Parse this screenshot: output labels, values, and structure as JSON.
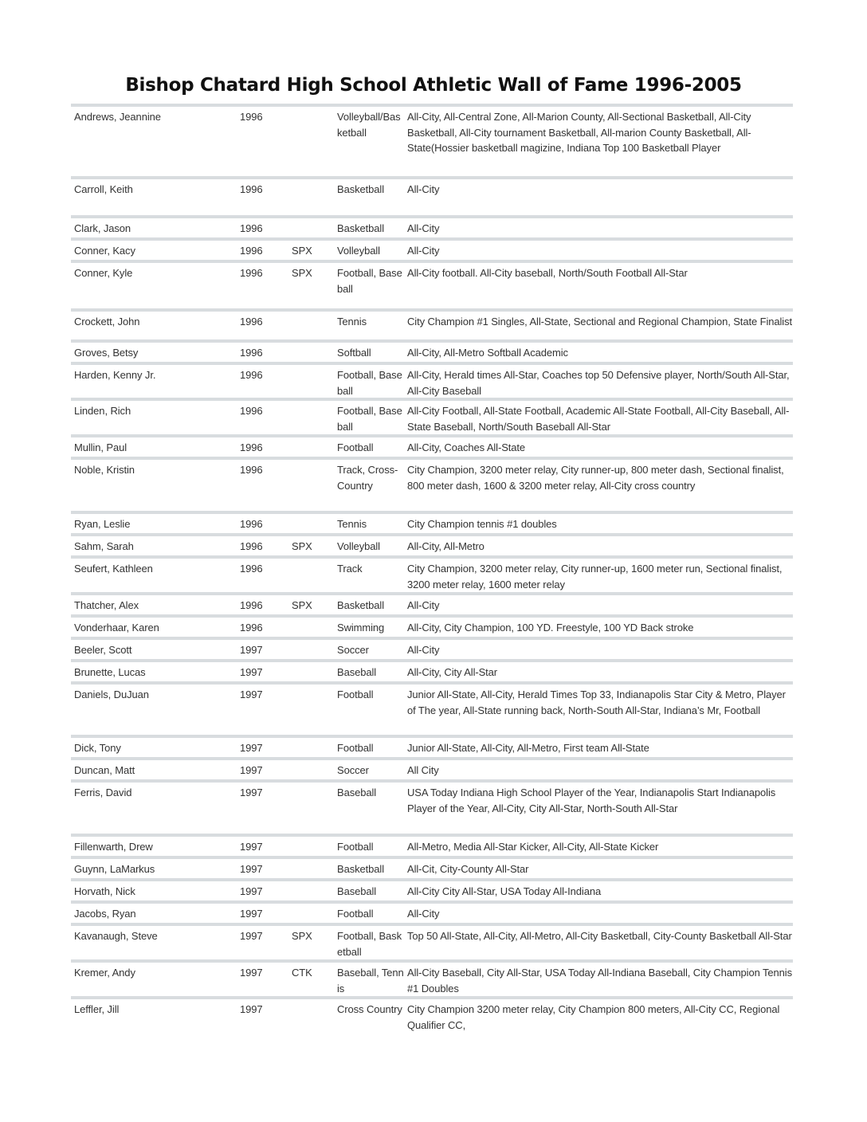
{
  "title": "Bishop Chatard High School Athletic Wall of Fame 1996-2005",
  "rows": [
    {
      "name": "Andrews, Jeannine",
      "year": "1996",
      "school": "",
      "sport": "Volleyball/Basketball",
      "honors": "All-City, All-Central Zone, All-Marion County, All-Sectional Basketball, All-City Basketball, All-City tournament Basketball, All-marion County Basketball, All-State(Hossier basketball magizine, Indiana Top 100 Basketball Player"
    },
    {
      "name": "Carroll, Keith",
      "year": "1996",
      "school": "",
      "sport": "Basketball",
      "honors": "All-City"
    },
    {
      "name": "Clark, Jason",
      "year": "1996",
      "school": "",
      "sport": "Basketball",
      "honors": "All-City"
    },
    {
      "name": "Conner, Kacy",
      "year": "1996",
      "school": "SPX",
      "sport": "Volleyball",
      "honors": "All-City"
    },
    {
      "name": "Conner, Kyle",
      "year": "1996",
      "school": "SPX",
      "sport": "Football, Baseball",
      "honors": "All-City football. All-City baseball, North/South Football All-Star"
    },
    {
      "name": "Crockett, John",
      "year": "1996",
      "school": "",
      "sport": "Tennis",
      "honors": "City Champion #1 Singles, All-State, Sectional and Regional Champion, State Finalist"
    },
    {
      "name": "Groves, Betsy",
      "year": "1996",
      "school": "",
      "sport": "Softball",
      "honors": "All-City, All-Metro Softball Academic"
    },
    {
      "name": "Harden, Kenny Jr.",
      "year": "1996",
      "school": "",
      "sport": "Football, Baseball",
      "honors": "All-City, Herald times All-Star, Coaches top 50 Defensive player, North/South All-Star, All-City Baseball"
    },
    {
      "name": "Linden, Rich",
      "year": "1996",
      "school": "",
      "sport": "Football, Baseball",
      "honors": "All-City Football, All-State Football, Academic All-State Football, All-City Baseball, All-State Baseball, North/South Baseball All-Star"
    },
    {
      "name": "Mullin, Paul",
      "year": "1996",
      "school": "",
      "sport": "Football",
      "honors": "All-City, Coaches All-State"
    },
    {
      "name": "Noble, Kristin",
      "year": "1996",
      "school": "",
      "sport": "Track, Cross-Country",
      "honors": "City Champion, 3200 meter relay, City runner-up, 800 meter dash, Sectional finalist, 800 meter dash, 1600 & 3200 meter relay, All-City cross country"
    },
    {
      "name": "Ryan, Leslie",
      "year": "1996",
      "school": "",
      "sport": "Tennis",
      "honors": "City Champion tennis #1 doubles"
    },
    {
      "name": "Sahm, Sarah",
      "year": "1996",
      "school": "SPX",
      "sport": "Volleyball",
      "honors": "All-City, All-Metro"
    },
    {
      "name": "Seufert, Kathleen",
      "year": "1996",
      "school": "",
      "sport": "Track",
      "honors": "City Champion, 3200 meter relay, City runner-up, 1600 meter run, Sectional finalist, 3200 meter relay, 1600 meter relay"
    },
    {
      "name": "Thatcher, Alex",
      "year": "1996",
      "school": "SPX",
      "sport": "Basketball",
      "honors": "All-City"
    },
    {
      "name": "Vonderhaar, Karen",
      "year": "1996",
      "school": "",
      "sport": "Swimming",
      "honors": "All-City, City Champion, 100 YD. Freestyle, 100 YD Back stroke"
    },
    {
      "name": "Beeler, Scott",
      "year": "1997",
      "school": "",
      "sport": "Soccer",
      "honors": "All-City"
    },
    {
      "name": "Brunette, Lucas",
      "year": "1997",
      "school": "",
      "sport": "Baseball",
      "honors": "All-City, City All-Star"
    },
    {
      "name": "Daniels, DuJuan",
      "year": "1997",
      "school": "",
      "sport": "Football",
      "honors": "Junior All-State, All-City, Herald Times Top 33, Indianapolis Star City & Metro, Player of The year, All-State running back, North-South All-Star, Indiana’s Mr, Football"
    },
    {
      "name": "Dick, Tony",
      "year": "1997",
      "school": "",
      "sport": "Football",
      "honors": "Junior All-State, All-City, All-Metro, First team All-State"
    },
    {
      "name": "Duncan, Matt",
      "year": "1997",
      "school": "",
      "sport": "Soccer",
      "honors": "All City"
    },
    {
      "name": "Ferris, David",
      "year": "1997",
      "school": "",
      "sport": "Baseball",
      "honors": "USA Today Indiana High School Player of the Year, Indianapolis Start Indianapolis Player of the Year, All-City, City All-Star, North-South All-Star"
    },
    {
      "name": "Fillenwarth, Drew",
      "year": "1997",
      "school": "",
      "sport": "Football",
      "honors": "All-Metro, Media All-Star Kicker, All-City, All-State Kicker"
    },
    {
      "name": "Guynn, LaMarkus",
      "year": "1997",
      "school": "",
      "sport": "Basketball",
      "honors": "All-Cit, City-County All-Star"
    },
    {
      "name": "Horvath, Nick",
      "year": "1997",
      "school": "",
      "sport": "Baseball",
      "honors": "All-City City All-Star, USA Today All-Indiana"
    },
    {
      "name": "Jacobs, Ryan",
      "year": "1997",
      "school": "",
      "sport": "Football",
      "honors": "All-City"
    },
    {
      "name": "Kavanaugh, Steve",
      "year": "1997",
      "school": "SPX",
      "sport": "Football, Basketball",
      "honors": "Top 50 All-State, All-City, All-Metro, All-City Basketball, City-County Basketball All-Star"
    },
    {
      "name": "Kremer, Andy",
      "year": "1997",
      "school": "CTK",
      "sport": "Baseball, Tennis",
      "honors": "All-City Baseball, City All-Star, USA Today All-Indiana Baseball, City Champion Tennis #1 Doubles"
    },
    {
      "name": "Leffler, Jill",
      "year": "1997",
      "school": "",
      "sport": "Cross Country",
      "honors": "City Champion 3200 meter relay, City Champion 800 meters, All-City CC, Regional Qualifier CC,"
    }
  ]
}
